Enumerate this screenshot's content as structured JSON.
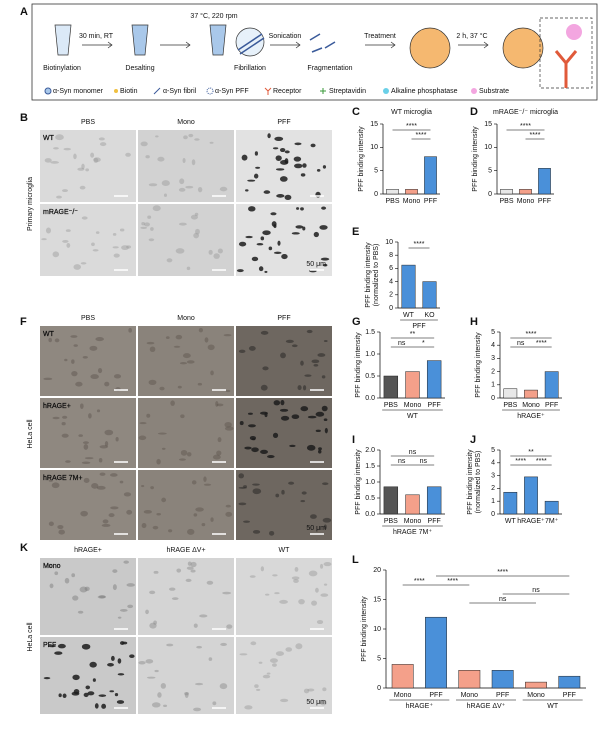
{
  "panel_labels": [
    "A",
    "B",
    "C",
    "D",
    "E",
    "F",
    "G",
    "H",
    "I",
    "J",
    "K",
    "L"
  ],
  "schematic": {
    "steps": [
      "30 min, RT",
      "Biotinylation",
      "Desalting",
      "37 °C, 220 rpm",
      "Fibrillation",
      "Sonication",
      "Fragmentation",
      "Treatment",
      "2 h, 37 °C"
    ],
    "legend": [
      "α-Syn monomer",
      "Biotin",
      "α-Syn fibril",
      "α-Syn PFF",
      "Receptor",
      "Streptavidin",
      "Alkaline phosphatase",
      "Substrate"
    ]
  },
  "micrographs": [
    {
      "columns": [
        "PBS",
        "Mono",
        "PFF"
      ],
      "rows": [
        "WT",
        "mRAGE⁻/⁻"
      ],
      "side_label": "Primary microglia",
      "scale_bar": "50 μm"
    },
    {
      "columns": [
        "PBS",
        "Mono",
        "PFF"
      ],
      "rows": [
        "WT",
        "hRAGE+",
        "hRAGE 7M+"
      ],
      "side_label": "HeLa cell",
      "scale_bar": "50 μm"
    },
    {
      "columns": [
        "hRAGE+",
        "hRAGE ΔV+",
        "WT"
      ],
      "rows": [
        "Mono",
        "PFF"
      ],
      "side_label": "HeLa cell",
      "scale_bar": "50 μm"
    }
  ],
  "chart_data": [
    {
      "type": "bar",
      "title": "WT microglia",
      "ylabel": [
        "PFF binding intensity"
      ],
      "categories": [
        "PBS",
        "Mono",
        "PFF"
      ],
      "values": [
        1,
        1,
        8
      ],
      "colors": [
        "#e8e8e8",
        "#f4a08a",
        "#4a90d9"
      ],
      "ylim": [
        0,
        15
      ],
      "yticks": [
        0,
        5,
        10,
        15
      ],
      "significance": [
        "****",
        "****"
      ]
    },
    {
      "type": "bar",
      "title": "mRAGE⁻/⁻ microglia",
      "ylabel": [
        "PFF binding intensity"
      ],
      "categories": [
        "PBS",
        "Mono",
        "PFF"
      ],
      "values": [
        1,
        1,
        5.5
      ],
      "colors": [
        "#e8e8e8",
        "#f4a08a",
        "#4a90d9"
      ],
      "ylim": [
        0,
        15
      ],
      "yticks": [
        0,
        5,
        10,
        15
      ],
      "significance": [
        "****",
        "****"
      ]
    },
    {
      "type": "bar",
      "ylabel": [
        "PFF binding intensity",
        "(normalized to PBS)"
      ],
      "categories": [
        "WT",
        "KO"
      ],
      "groups": [
        "PFF"
      ],
      "values": [
        6.5,
        4
      ],
      "colors": [
        "#4a90d9",
        "#4a90d9"
      ],
      "ylim": [
        0,
        10
      ],
      "yticks": [
        0,
        2,
        4,
        6,
        8,
        10
      ],
      "significance": [
        "****"
      ]
    },
    {
      "type": "bar",
      "ylabel": [
        "PFF binding intensity"
      ],
      "categories": [
        "PBS",
        "Mono",
        "PFF"
      ],
      "groups": [
        "WT"
      ],
      "values": [
        0.5,
        0.6,
        0.85
      ],
      "colors": [
        "#555555",
        "#f4a08a",
        "#4a90d9"
      ],
      "ylim": [
        0,
        1.5
      ],
      "yticks": [
        {
          "value": 0,
          "label": "0.0"
        },
        0.5,
        {
          "value": 1,
          "label": "1.0"
        },
        1.5
      ],
      "significance": [
        "**",
        "ns",
        "*"
      ]
    },
    {
      "type": "bar",
      "ylabel": [
        "PFF binding intensity"
      ],
      "categories": [
        "PBS",
        "Mono",
        "PFF"
      ],
      "groups": [
        "hRAGE⁺"
      ],
      "values": [
        0.7,
        0.6,
        2
      ],
      "colors": [
        "#e8e8e8",
        "#f4a08a",
        "#4a90d9"
      ],
      "ylim": [
        0,
        5
      ],
      "yticks": [
        0,
        1,
        2,
        3,
        4,
        5
      ],
      "significance": [
        "****",
        "ns",
        "****"
      ]
    },
    {
      "type": "bar",
      "ylabel": [
        "PFF binding intensity"
      ],
      "categories": [
        "PBS",
        "Mono",
        "PFF"
      ],
      "groups": [
        "hRAGE 7M⁺"
      ],
      "values": [
        0.85,
        0.6,
        0.85
      ],
      "colors": [
        "#555555",
        "#f4a08a",
        "#4a90d9"
      ],
      "ylim": [
        0,
        2
      ],
      "yticks": [
        {
          "value": 0,
          "label": "0.0"
        },
        0.5,
        {
          "value": 1,
          "label": "1.0"
        },
        1.5,
        {
          "value": 2,
          "label": "2.0"
        }
      ],
      "significance": [
        "ns",
        "ns",
        "ns"
      ]
    },
    {
      "type": "bar",
      "ylabel": [
        "PFF binding intensity",
        "(normalized to PBS)"
      ],
      "categories": [
        "WT",
        "hRAGE⁺",
        "7M⁺"
      ],
      "values": [
        1.7,
        2.9,
        1
      ],
      "colors": [
        "#4a90d9",
        "#4a90d9",
        "#4a90d9"
      ],
      "ylim": [
        0,
        5
      ],
      "yticks": [
        0,
        1,
        2,
        3,
        4,
        5
      ],
      "significance": [
        "**",
        "****",
        "****"
      ]
    },
    {
      "type": "bar",
      "ylabel": [
        "PFF binding intensity"
      ],
      "categories": [
        "Mono",
        "PFF",
        "Mono",
        "PFF",
        "Mono",
        "PFF"
      ],
      "groups": [
        "hRAGE⁺",
        "hRAGE ΔV⁺",
        "WT"
      ],
      "values": [
        4,
        12,
        3,
        3,
        1,
        2
      ],
      "colors": [
        "#f4a08a",
        "#4a90d9",
        "#f4a08a",
        "#4a90d9",
        "#f4a08a",
        "#4a90d9"
      ],
      "ylim": [
        0,
        20
      ],
      "yticks": [
        0,
        5,
        10,
        15,
        20
      ],
      "significance": [
        "****",
        "****",
        "****",
        "ns",
        "ns"
      ]
    }
  ]
}
